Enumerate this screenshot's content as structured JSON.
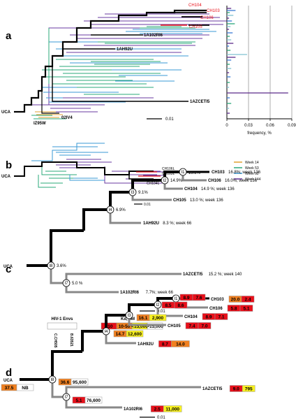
{
  "panel_labels": {
    "a": "a",
    "b": "b",
    "c": "c",
    "d": "d"
  },
  "panel_a": {
    "tips": [
      {
        "text": "CH103",
        "color": "red"
      },
      {
        "text": "CH106",
        "color": "red"
      },
      {
        "text": "CH104",
        "color": "red"
      },
      {
        "text": "CH105",
        "color": "red"
      },
      {
        "text": "1A102RI6",
        "color": "black"
      },
      {
        "text": "1AH92U",
        "color": "black"
      },
      {
        "text": "1AZCETI5",
        "color": "black"
      },
      {
        "text": "02IV4",
        "color": "black"
      },
      {
        "text": "IZ95W",
        "color": "black"
      },
      {
        "text": "UCA",
        "color": "black"
      }
    ],
    "scale_label": "0.01",
    "chart_data": {
      "type": "bar",
      "orientation": "horizontal",
      "xlabel": "frequency, %",
      "xticks": [
        "0",
        "0.03",
        "0.06",
        "0.09"
      ],
      "xlim": [
        0,
        0.09
      ],
      "grid": true,
      "colors": [
        "#5b2a8a",
        "#3a7bd5",
        "#2aa87a",
        "#7fc1d0"
      ]
    }
  },
  "panel_b": {
    "tips": [
      {
        "text": "CH106L",
        "color": "red"
      },
      {
        "text": "CH103L",
        "color": "red"
      },
      {
        "text": "CH104L",
        "color": "red"
      },
      {
        "text": "UCA",
        "color": "black"
      }
    ],
    "scale_label": "0.01",
    "legend": [
      {
        "label": "Week 14",
        "color": "#e0a030"
      },
      {
        "label": "Week 53",
        "color": "#2aa87a"
      },
      {
        "label": "Week 92",
        "color": "#3a9ad5"
      },
      {
        "label": "Week 144",
        "color": "#6a3aa0"
      }
    ]
  },
  "panel_c": {
    "root": "UCA",
    "nodes": [
      "I1",
      "I2",
      "I3",
      "I4",
      "I7",
      "I8"
    ],
    "tips": [
      {
        "name": "CH103",
        "info": "16.8%; week 136",
        "red": true
      },
      {
        "name": "CH106",
        "info": "16.0%; week 136",
        "red": true
      },
      {
        "name": "CH104",
        "info": "14.9 %; week 136",
        "red": true
      },
      {
        "name": "CH105",
        "info": "13.0 %; week 136",
        "red": true
      },
      {
        "name": "1AH92U",
        "info": "8.3 %; week 66",
        "red": false
      },
      {
        "name": "1AZCETI5",
        "info": "15.2 %; week 140",
        "red": false
      },
      {
        "name": "1A102RI6",
        "info": "7.7%; week 66",
        "red": false
      }
    ],
    "node_values": {
      "I1": "15.2%",
      "I2": "14.9%",
      "I3": "9.1%",
      "I4": "6.9%",
      "I7": "5.0 %",
      "I8": "3.6%"
    },
    "scale_label": "0.01"
  },
  "panel_d": {
    "root": "UCA",
    "header": {
      "hiv_envs": "HIV-1 Envs",
      "kd_title": "Kd, nM",
      "col1": "C.CH505",
      "col2": "B.63521",
      "kd_legend": [
        {
          "label": "<10",
          "color": "#e8101a"
        },
        {
          "label": "10-50",
          "color": "#f08020"
        },
        {
          "label": "<15,000",
          "color": "#f8f020"
        },
        {
          "label": ">15,000",
          "color": "#ffffff"
        }
      ]
    },
    "nodes": [
      "I1",
      "I2",
      "I3",
      "I4",
      "I7",
      "I8"
    ],
    "tips": [
      {
        "name": "CH103",
        "v1": "20.0",
        "v2": "2.4",
        "red": true
      },
      {
        "name": "CH106",
        "v1": "5.8",
        "v2": "5.1",
        "red": true
      },
      {
        "name": "CH104",
        "v1": "8.9",
        "v2": "7.1",
        "red": true
      },
      {
        "name": "CH105",
        "v1": "7.4",
        "v2": "7.0",
        "red": true
      },
      {
        "name": "1AH92U",
        "v1": "8.7",
        "v2": "14.0",
        "red": false
      },
      {
        "name": "1AZCETI5",
        "v1": "9.0",
        "v2": "795",
        "red": false
      },
      {
        "name": "1A102RI6",
        "v1": "2.5",
        "v2": "11,000",
        "red": false
      }
    ],
    "node_cells": {
      "I1": [
        "8.9",
        "7.6"
      ],
      "I2": [
        "8.5",
        "8.6"
      ],
      "I3": [
        "16.1",
        "2,900"
      ],
      "I4": [
        "14.7",
        "12,600"
      ],
      "I8": [
        "36.6",
        "95,600"
      ],
      "I7": [
        "5.1",
        "76,600"
      ],
      "UCA": [
        "37.5",
        "NB"
      ]
    },
    "scale_label": "0.01"
  }
}
